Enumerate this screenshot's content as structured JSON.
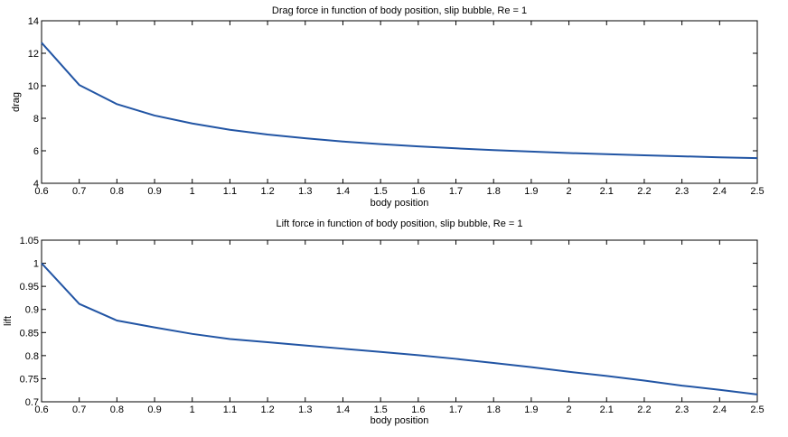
{
  "chart_data": [
    {
      "type": "line",
      "title": "Drag force in function of body position, slip bubble, Re = 1",
      "xlabel": "body position",
      "ylabel": "drag",
      "xlim": [
        0.6,
        2.5
      ],
      "ylim": [
        4,
        14
      ],
      "xticks": [
        0.6,
        0.7,
        0.8,
        0.9,
        1,
        1.1,
        1.2,
        1.3,
        1.4,
        1.5,
        1.6,
        1.7,
        1.8,
        1.9,
        2,
        2.1,
        2.2,
        2.3,
        2.4,
        2.5
      ],
      "xtick_labels": [
        "0.6",
        "0.7",
        "0.8",
        "0.9",
        "1",
        "1.1",
        "1.2",
        "1.3",
        "1.4",
        "1.5",
        "1.6",
        "1.7",
        "1.8",
        "1.9",
        "2",
        "2.1",
        "2.2",
        "2.3",
        "2.4",
        "2.5"
      ],
      "yticks": [
        4,
        6,
        8,
        10,
        12,
        14
      ],
      "ytick_labels": [
        "4",
        "6",
        "8",
        "10",
        "12",
        "14"
      ],
      "grid": false,
      "line_color": "#2255a4",
      "x": [
        0.6,
        0.7,
        0.8,
        0.9,
        1,
        1.1,
        1.2,
        1.3,
        1.4,
        1.5,
        1.6,
        1.7,
        1.8,
        1.9,
        2,
        2.1,
        2.2,
        2.3,
        2.4,
        2.5
      ],
      "y": [
        12.65,
        10.05,
        8.87,
        8.17,
        7.68,
        7.29,
        7.0,
        6.77,
        6.57,
        6.41,
        6.27,
        6.15,
        6.04,
        5.95,
        5.86,
        5.79,
        5.72,
        5.66,
        5.6,
        5.55
      ]
    },
    {
      "type": "line",
      "title": "Lift force in function of body position, slip bubble, Re = 1",
      "xlabel": "body position",
      "ylabel": "lift",
      "xlim": [
        0.6,
        2.5
      ],
      "ylim": [
        0.7,
        1.05
      ],
      "xticks": [
        0.6,
        0.7,
        0.8,
        0.9,
        1,
        1.1,
        1.2,
        1.3,
        1.4,
        1.5,
        1.6,
        1.7,
        1.8,
        1.9,
        2,
        2.1,
        2.2,
        2.3,
        2.4,
        2.5
      ],
      "xtick_labels": [
        "0.6",
        "0.7",
        "0.8",
        "0.9",
        "1",
        "1.1",
        "1.2",
        "1.3",
        "1.4",
        "1.5",
        "1.6",
        "1.7",
        "1.8",
        "1.9",
        "2",
        "2.1",
        "2.2",
        "2.3",
        "2.4",
        "2.5"
      ],
      "yticks": [
        0.7,
        0.75,
        0.8,
        0.85,
        0.9,
        0.95,
        1,
        1.05
      ],
      "ytick_labels": [
        "0.7",
        "0.75",
        "0.8",
        "0.85",
        "0.9",
        "0.95",
        "1",
        "1.05"
      ],
      "grid": false,
      "line_color": "#2255a4",
      "x": [
        0.6,
        0.7,
        0.8,
        0.9,
        1,
        1.1,
        1.2,
        1.3,
        1.4,
        1.5,
        1.6,
        1.7,
        1.8,
        1.9,
        2,
        2.1,
        2.2,
        2.3,
        2.4,
        2.5
      ],
      "y": [
        1.0,
        0.912,
        0.876,
        0.861,
        0.847,
        0.836,
        0.829,
        0.822,
        0.815,
        0.808,
        0.801,
        0.793,
        0.784,
        0.775,
        0.765,
        0.756,
        0.746,
        0.735,
        0.726,
        0.716
      ]
    }
  ]
}
